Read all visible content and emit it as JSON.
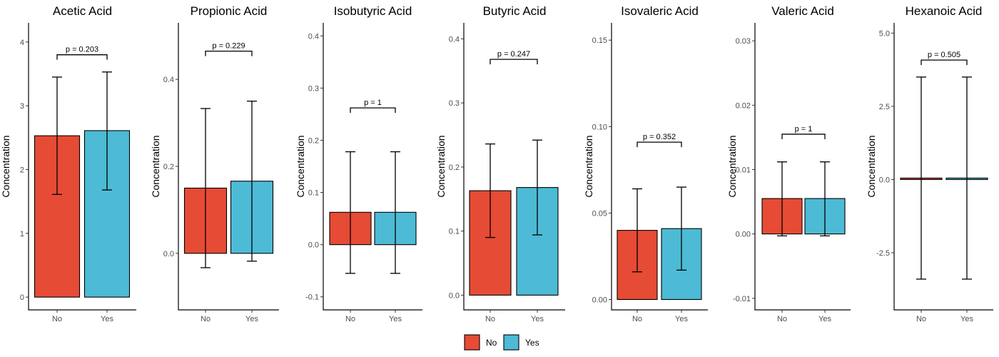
{
  "legend": {
    "items": [
      {
        "label": "No",
        "color": "#E64B35"
      },
      {
        "label": "Yes",
        "color": "#4DBBD5"
      }
    ]
  },
  "chart_data": [
    {
      "type": "bar",
      "title": "Acetic Acid",
      "ylabel": "Concentration",
      "categories": [
        "No",
        "Yes"
      ],
      "values": [
        2.53,
        2.61
      ],
      "error_low": [
        1.61,
        1.68
      ],
      "error_high": [
        3.45,
        3.53
      ],
      "ylim": [
        -0.2,
        4.3
      ],
      "yticks": [
        0,
        1,
        2,
        3,
        4
      ],
      "ytick_labels": [
        "0",
        "1",
        "2",
        "3",
        "4"
      ],
      "pvalue": "p = 0.203",
      "bracket_y": 3.8
    },
    {
      "type": "bar",
      "title": "Propionic Acid",
      "ylabel": "Concentration",
      "categories": [
        "No",
        "Yes"
      ],
      "values": [
        0.15,
        0.166
      ],
      "error_low": [
        -0.033,
        -0.018
      ],
      "error_high": [
        0.333,
        0.35
      ],
      "ylim": [
        -0.13,
        0.53
      ],
      "yticks": [
        0.0,
        0.2,
        0.4
      ],
      "ytick_labels": [
        "0.0",
        "0.2",
        "0.4"
      ],
      "pvalue": "p = 0.229",
      "bracket_y": 0.465
    },
    {
      "type": "bar",
      "title": "Isobutyric Acid",
      "ylabel": "Concentration",
      "categories": [
        "No",
        "Yes"
      ],
      "values": [
        0.062,
        0.062
      ],
      "error_low": [
        -0.055,
        -0.055
      ],
      "error_high": [
        0.178,
        0.178
      ],
      "ylim": [
        -0.125,
        0.425
      ],
      "yticks": [
        -0.1,
        0.0,
        0.1,
        0.2,
        0.3,
        0.4
      ],
      "ytick_labels": [
        "-0.1",
        "0.0",
        "0.1",
        "0.2",
        "0.3",
        "0.4"
      ],
      "pvalue": "p = 1",
      "bracket_y": 0.262
    },
    {
      "type": "bar",
      "title": "Butyric Acid",
      "ylabel": "Concentration",
      "categories": [
        "No",
        "Yes"
      ],
      "values": [
        0.163,
        0.168
      ],
      "error_low": [
        0.09,
        0.094
      ],
      "error_high": [
        0.236,
        0.242
      ],
      "ylim": [
        -0.023,
        0.425
      ],
      "yticks": [
        0.0,
        0.1,
        0.2,
        0.3,
        0.4
      ],
      "ytick_labels": [
        "0.0",
        "0.1",
        "0.2",
        "0.3",
        "0.4"
      ],
      "pvalue": "p = 0.247",
      "bracket_y": 0.368
    },
    {
      "type": "bar",
      "title": "Isovaleric Acid",
      "ylabel": "Concentration",
      "categories": [
        "No",
        "Yes"
      ],
      "values": [
        0.04,
        0.041
      ],
      "error_low": [
        0.016,
        0.017
      ],
      "error_high": [
        0.064,
        0.065
      ],
      "ylim": [
        -0.006,
        0.16
      ],
      "yticks": [
        0.0,
        0.05,
        0.1,
        0.15
      ],
      "ytick_labels": [
        "0.00",
        "0.05",
        "0.10",
        "0.15"
      ],
      "pvalue": "p = 0.352",
      "bracket_y": 0.091
    },
    {
      "type": "bar",
      "title": "Valeric Acid",
      "ylabel": "Concentration",
      "categories": [
        "No",
        "Yes"
      ],
      "values": [
        0.0055,
        0.0055
      ],
      "error_low": [
        -0.0003,
        -0.0003
      ],
      "error_high": [
        0.0112,
        0.0112
      ],
      "ylim": [
        -0.0118,
        0.0328
      ],
      "yticks": [
        -0.01,
        0.0,
        0.01,
        0.02,
        0.03
      ],
      "ytick_labels": [
        "-0.01",
        "0.00",
        "0.01",
        "0.02",
        "0.03"
      ],
      "pvalue": "p = 1",
      "bracket_y": 0.0155
    },
    {
      "type": "bar",
      "title": "Hexanoic Acid",
      "ylabel": "Concentration",
      "categories": [
        "No",
        "Yes"
      ],
      "values": [
        0.05,
        0.05
      ],
      "error_low": [
        -3.4,
        -3.4
      ],
      "error_high": [
        3.5,
        3.5
      ],
      "ylim": [
        -4.45,
        5.35
      ],
      "yticks": [
        -2.5,
        0.0,
        2.5,
        5.0
      ],
      "ytick_labels": [
        "-2.5",
        "0.0",
        "2.5",
        "5.0"
      ],
      "pvalue": "p = 0.505",
      "bracket_y": 4.08
    }
  ]
}
